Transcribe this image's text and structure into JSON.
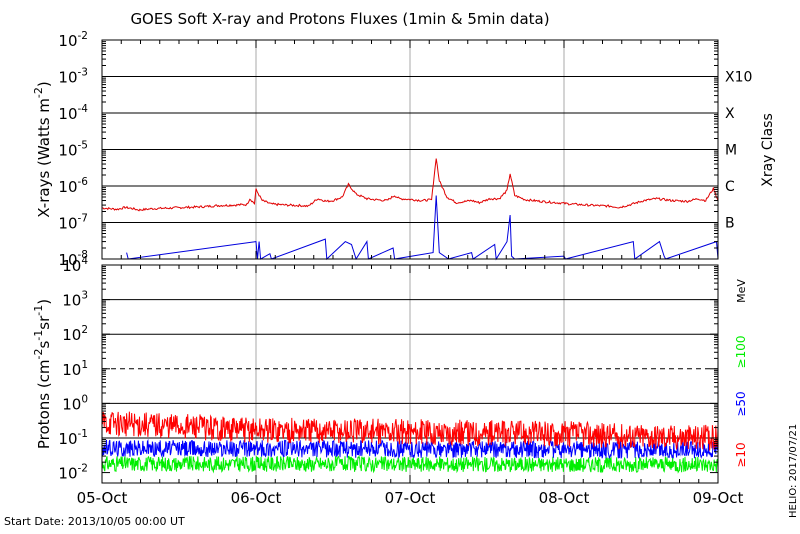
{
  "title": "GOES Soft X-ray and Protons Fluxes   (1min & 5min data)",
  "footer_left": "Start Date: 2013/10/05 00:00 UT",
  "footer_right": "HELIO: 2017/07/21",
  "colors": {
    "xray_long": "#e00000",
    "xray_short": "#0000dd",
    "p10": "#ff0000",
    "p50": "#0000ff",
    "p100": "#00ee00",
    "grid": "#000000",
    "day_grid": "#aaaaaa"
  },
  "chart_data": [
    {
      "type": "line",
      "name": "xray-panel",
      "ylabel_parts": [
        "X-rays (Watts m",
        "-2",
        ")"
      ],
      "y_scale": "log",
      "ylim": [
        1e-08,
        0.01
      ],
      "yticks": [
        {
          "mant": "10",
          "exp": "-8",
          "v": 1e-08
        },
        {
          "mant": "10",
          "exp": "-7",
          "v": 1e-07
        },
        {
          "mant": "10",
          "exp": "-6",
          "v": 1e-06
        },
        {
          "mant": "10",
          "exp": "-5",
          "v": 1e-05
        },
        {
          "mant": "10",
          "exp": "-4",
          "v": 0.0001
        },
        {
          "mant": "10",
          "exp": "-3",
          "v": 0.001
        },
        {
          "mant": "10",
          "exp": "-2",
          "v": 0.01
        }
      ],
      "xlim": [
        "2013-10-05",
        "2013-10-09"
      ],
      "xtick_labels": [
        "05-Oct",
        "06-Oct",
        "07-Oct",
        "08-Oct",
        "09-Oct"
      ],
      "right_axis_label": "Xray Class",
      "class_labels": [
        {
          "label": "B",
          "v": 1e-07
        },
        {
          "label": "C",
          "v": 1e-06
        },
        {
          "label": "M",
          "v": 1e-05
        },
        {
          "label": "X",
          "v": 0.0001
        },
        {
          "label": "X10",
          "v": 0.001
        }
      ],
      "grid_lines": [
        1e-07,
        1e-06,
        1e-05,
        0.0001,
        0.001
      ],
      "series": [
        {
          "color": "#e00000",
          "points": [
            [
              0.0,
              2.5e-07
            ],
            [
              0.1,
              2.3e-07
            ],
            [
              0.15,
              2.6e-07
            ],
            [
              0.2,
              2.4e-07
            ],
            [
              0.24,
              2.2e-07
            ],
            [
              0.33,
              2.4e-07
            ],
            [
              0.45,
              2.5e-07
            ],
            [
              0.55,
              2.6e-07
            ],
            [
              0.65,
              2.7e-07
            ],
            [
              0.75,
              2.9e-07
            ],
            [
              0.85,
              3e-07
            ],
            [
              0.94,
              3.1e-07
            ],
            [
              0.96,
              4.5e-07
            ],
            [
              0.99,
              3.3e-07
            ],
            [
              1.0,
              8e-07
            ],
            [
              1.04,
              4e-07
            ],
            [
              1.1,
              3.2e-07
            ],
            [
              1.2,
              3e-07
            ],
            [
              1.3,
              2.9e-07
            ],
            [
              1.34,
              2.8e-07
            ],
            [
              1.4,
              4.5e-07
            ],
            [
              1.46,
              3.8e-07
            ],
            [
              1.5,
              4e-07
            ],
            [
              1.56,
              5e-07
            ],
            [
              1.6,
              1.1e-06
            ],
            [
              1.65,
              6e-07
            ],
            [
              1.72,
              4.5e-07
            ],
            [
              1.78,
              4.2e-07
            ],
            [
              1.85,
              4e-07
            ],
            [
              1.9,
              5.5e-07
            ],
            [
              1.93,
              4.5e-07
            ],
            [
              2.0,
              4.3e-07
            ],
            [
              2.08,
              4e-07
            ],
            [
              2.14,
              4.2e-07
            ],
            [
              2.17,
              6e-06
            ],
            [
              2.19,
              1.4e-06
            ],
            [
              2.24,
              5e-07
            ],
            [
              2.3,
              3.5e-07
            ],
            [
              2.4,
              4e-07
            ],
            [
              2.45,
              3.5e-07
            ],
            [
              2.52,
              4.5e-07
            ],
            [
              2.58,
              4.5e-07
            ],
            [
              2.63,
              7.5e-07
            ],
            [
              2.65,
              2.2e-06
            ],
            [
              2.68,
              5.5e-07
            ],
            [
              2.75,
              4.2e-07
            ],
            [
              2.85,
              3.8e-07
            ],
            [
              2.95,
              3.5e-07
            ],
            [
              3.05,
              3.2e-07
            ],
            [
              3.15,
              3e-07
            ],
            [
              3.3,
              2.8e-07
            ],
            [
              3.36,
              2.6e-07
            ],
            [
              3.42,
              3e-07
            ],
            [
              3.52,
              4e-07
            ],
            [
              3.6,
              4.5e-07
            ],
            [
              3.7,
              4e-07
            ],
            [
              3.8,
              3.8e-07
            ],
            [
              3.87,
              4.5e-07
            ],
            [
              3.92,
              4e-07
            ],
            [
              3.97,
              8.5e-07
            ],
            [
              4.0,
              4e-07
            ]
          ]
        },
        {
          "color": "#0000dd",
          "points": [
            [
              0.16,
              1.5e-08
            ],
            [
              0.17,
              8e-09
            ],
            [
              1.0,
              3e-08
            ],
            [
              1.01,
              1e-08
            ],
            [
              1.02,
              3e-08
            ],
            [
              1.03,
              8e-09
            ],
            [
              1.09,
              1.4e-08
            ],
            [
              1.1,
              8e-09
            ],
            [
              1.45,
              3.5e-08
            ],
            [
              1.46,
              8e-09
            ],
            [
              1.58,
              3e-08
            ],
            [
              1.62,
              2.5e-08
            ],
            [
              1.65,
              8e-09
            ],
            [
              1.72,
              3e-08
            ],
            [
              1.73,
              8e-09
            ],
            [
              1.89,
              2e-08
            ],
            [
              1.9,
              8e-09
            ],
            [
              2.15,
              1.5e-08
            ],
            [
              2.17,
              5.5e-07
            ],
            [
              2.19,
              1.5e-08
            ],
            [
              2.25,
              8e-09
            ],
            [
              2.4,
              1.5e-08
            ],
            [
              2.41,
              8e-09
            ],
            [
              2.55,
              2.5e-08
            ],
            [
              2.56,
              8e-09
            ],
            [
              2.63,
              3e-08
            ],
            [
              2.65,
              1.6e-07
            ],
            [
              2.66,
              1.2e-08
            ],
            [
              2.68,
              8e-09
            ],
            [
              3.0,
              1.2e-08
            ],
            [
              3.01,
              8e-09
            ],
            [
              3.45,
              3e-08
            ],
            [
              3.46,
              8e-09
            ],
            [
              3.62,
              3e-08
            ],
            [
              3.65,
              1.2e-08
            ],
            [
              3.66,
              8e-09
            ],
            [
              3.99,
              3e-08
            ],
            [
              4.0,
              8e-09
            ]
          ]
        }
      ]
    },
    {
      "type": "line",
      "name": "proton-panel",
      "ylabel_parts": [
        "Protons (cm",
        "-2",
        "s",
        "-1",
        "sr",
        "-1",
        ")"
      ],
      "y_scale": "log",
      "ylim": [
        0.005,
        10000
      ],
      "yticks": [
        {
          "mant": "10",
          "exp": "-2",
          "v": 0.01
        },
        {
          "mant": "10",
          "exp": "-1",
          "v": 0.1
        },
        {
          "mant": "10",
          "exp": "0",
          "v": 1
        },
        {
          "mant": "10",
          "exp": "1",
          "v": 10
        },
        {
          "mant": "10",
          "exp": "2",
          "v": 100
        },
        {
          "mant": "10",
          "exp": "3",
          "v": 1000
        },
        {
          "mant": "10",
          "exp": "4",
          "v": 10000
        }
      ],
      "grid_lines": [
        0.1,
        1,
        100,
        1000
      ],
      "dashed_line": 10,
      "xlim": [
        "2013-10-05",
        "2013-10-09"
      ],
      "xtick_labels": [
        "05-Oct",
        "06-Oct",
        "07-Oct",
        "08-Oct",
        "09-Oct"
      ],
      "right_axis_unit": "MeV",
      "series": [
        {
          "name": "≥100",
          "color": "#00ee00",
          "base": [
            [
              0,
              0.018
            ],
            [
              4,
              0.017
            ]
          ],
          "spread": 0.45
        },
        {
          "name": "≥50",
          "color": "#0000ff",
          "base": [
            [
              0,
              0.05
            ],
            [
              4,
              0.045
            ]
          ],
          "spread": 0.5
        },
        {
          "name": "≥10",
          "color": "#ff0000",
          "base": [
            [
              0,
              0.28
            ],
            [
              0.5,
              0.22
            ],
            [
              1,
              0.17
            ],
            [
              2,
              0.15
            ],
            [
              3,
              0.13
            ],
            [
              4,
              0.1
            ]
          ],
          "spread": 0.75
        }
      ]
    }
  ]
}
